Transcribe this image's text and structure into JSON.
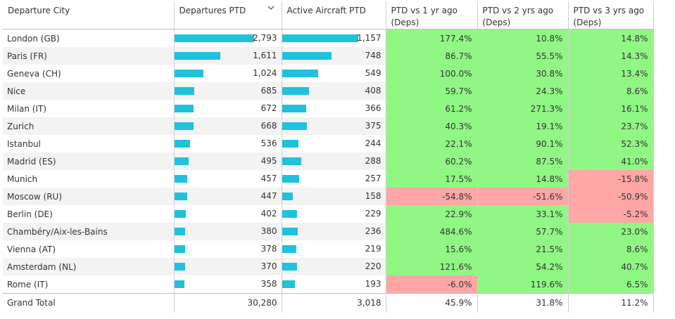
{
  "table": {
    "headers": {
      "city": "Departure City",
      "departures": "Departures PTD",
      "aircraft": "Active Aircraft PTD",
      "vs1": "PTD vs 1 yr ago (Deps)",
      "vs2": "PTD vs 2 yrs ago (Deps)",
      "vs3": "PTD vs 3 yrs ago (Deps)"
    },
    "sort_icon": "chevron-down-icon",
    "colors": {
      "bar": "#1fc2dc",
      "positive": "#90f784",
      "negative": "#ffa6a6"
    },
    "total": {
      "label": "Grand Total",
      "departures": "30,280",
      "aircraft": "3,018",
      "vs1": "45.9%",
      "vs2": "31.8%",
      "vs3": "11.2%"
    }
  },
  "chart_data": {
    "type": "table",
    "columns": [
      "Departure City",
      "Departures PTD",
      "Active Aircraft PTD",
      "PTD vs 1 yr ago (Deps)",
      "PTD vs 2 yrs ago (Deps)",
      "PTD vs 3 yrs ago (Deps)"
    ],
    "rows": [
      {
        "city": "London (GB)",
        "departures": 2793,
        "aircraft": 1157,
        "vs1": 177.4,
        "vs2": 10.8,
        "vs3": 14.8
      },
      {
        "city": "Paris (FR)",
        "departures": 1611,
        "aircraft": 748,
        "vs1": 86.7,
        "vs2": 55.5,
        "vs3": 14.3
      },
      {
        "city": "Geneva (CH)",
        "departures": 1024,
        "aircraft": 549,
        "vs1": 100.0,
        "vs2": 30.8,
        "vs3": 13.4
      },
      {
        "city": "Nice",
        "departures": 685,
        "aircraft": 408,
        "vs1": 59.7,
        "vs2": 24.3,
        "vs3": 8.6
      },
      {
        "city": "Milan (IT)",
        "departures": 672,
        "aircraft": 366,
        "vs1": 61.2,
        "vs2": 271.3,
        "vs3": 16.1
      },
      {
        "city": "Zurich",
        "departures": 668,
        "aircraft": 375,
        "vs1": 40.3,
        "vs2": 19.1,
        "vs3": 23.7
      },
      {
        "city": "Istanbul",
        "departures": 536,
        "aircraft": 244,
        "vs1": 22.1,
        "vs2": 90.1,
        "vs3": 52.3
      },
      {
        "city": "Madrid (ES)",
        "departures": 495,
        "aircraft": 288,
        "vs1": 60.2,
        "vs2": 87.5,
        "vs3": 41.0
      },
      {
        "city": "Munich",
        "departures": 457,
        "aircraft": 257,
        "vs1": 17.5,
        "vs2": 14.8,
        "vs3": -15.8
      },
      {
        "city": "Moscow (RU)",
        "departures": 447,
        "aircraft": 158,
        "vs1": -54.8,
        "vs2": -51.6,
        "vs3": -50.9
      },
      {
        "city": "Berlin (DE)",
        "departures": 402,
        "aircraft": 229,
        "vs1": 22.9,
        "vs2": 33.1,
        "vs3": -5.2
      },
      {
        "city": "Chambéry/Aix-les-Bains",
        "departures": 380,
        "aircraft": 236,
        "vs1": 484.6,
        "vs2": 57.7,
        "vs3": 23.0
      },
      {
        "city": "Vienna (AT)",
        "departures": 378,
        "aircraft": 219,
        "vs1": 15.6,
        "vs2": 21.5,
        "vs3": 8.6
      },
      {
        "city": "Amsterdam (NL)",
        "departures": 370,
        "aircraft": 220,
        "vs1": 121.6,
        "vs2": 54.2,
        "vs3": 40.7
      },
      {
        "city": "Rome (IT)",
        "departures": 358,
        "aircraft": 193,
        "vs1": -6.0,
        "vs2": 119.6,
        "vs3": 6.5
      }
    ]
  }
}
